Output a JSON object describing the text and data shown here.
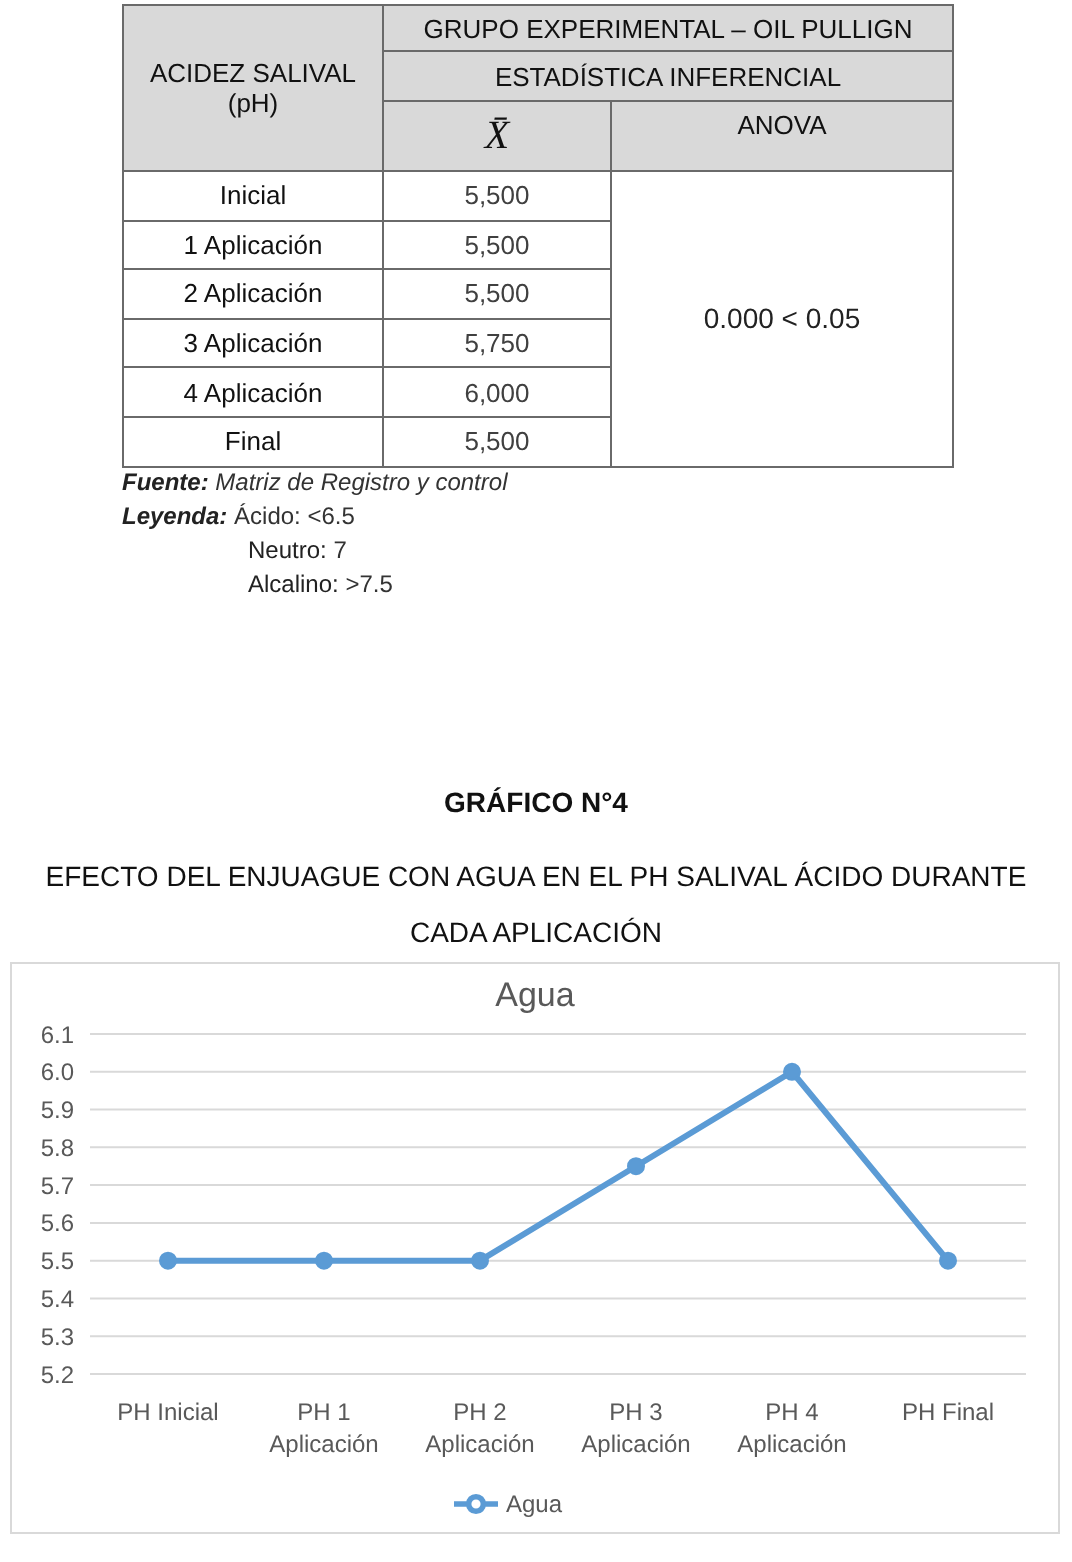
{
  "chart_data": [
    {
      "type": "other",
      "title": "GRUPO EXPERIMENTAL – OIL PULLIGN",
      "subtitle": "ESTADÍSTICA INFERENCIAL",
      "ylabel": "ACIDEZ SALIVAL (pH)",
      "categories": [
        "Inicial",
        "1 Aplicación",
        "2 Aplicación",
        "3 Aplicación",
        "4 Aplicación",
        "Final"
      ],
      "value_labels": [
        "5,500",
        "5,500",
        "5,500",
        "5,750",
        "6,000",
        "5,500"
      ],
      "annotations": [
        "X̄",
        "ANOVA",
        "0.000 < 0.05",
        "Fuente: Matriz de Registro y control",
        "Leyenda: Ácido: <6.5",
        "Neutro: 7",
        "Alcalino: >7.5"
      ]
    },
    {
      "type": "line",
      "title": "Agua",
      "annotations": [
        "GRÁFICO N°4",
        "EFECTO DEL ENJUAGUE CON AGUA EN EL PH SALIVAL ÁCIDO DURANTE CADA APLICACIÓN"
      ],
      "categories": [
        "PH Inicial",
        "PH 1 Aplicación",
        "PH 2 Aplicación",
        "PH 3 Aplicación",
        "PH 4 Aplicación",
        "PH Final"
      ],
      "series": [
        {
          "name": "Agua",
          "color": "#5b9bd5",
          "values": [
            5.5,
            5.5,
            5.5,
            5.75,
            6,
            5.5
          ]
        }
      ],
      "ylim": [
        5.2,
        6.1
      ],
      "yticks": [
        5.2,
        5.3,
        5.4,
        5.5,
        5.6,
        5.7,
        5.8,
        5.9,
        {
          "value": 6,
          "label": "6.0"
        },
        6.1
      ],
      "grid": "y",
      "legend": "bottom",
      "marker": "circle"
    }
  ]
}
